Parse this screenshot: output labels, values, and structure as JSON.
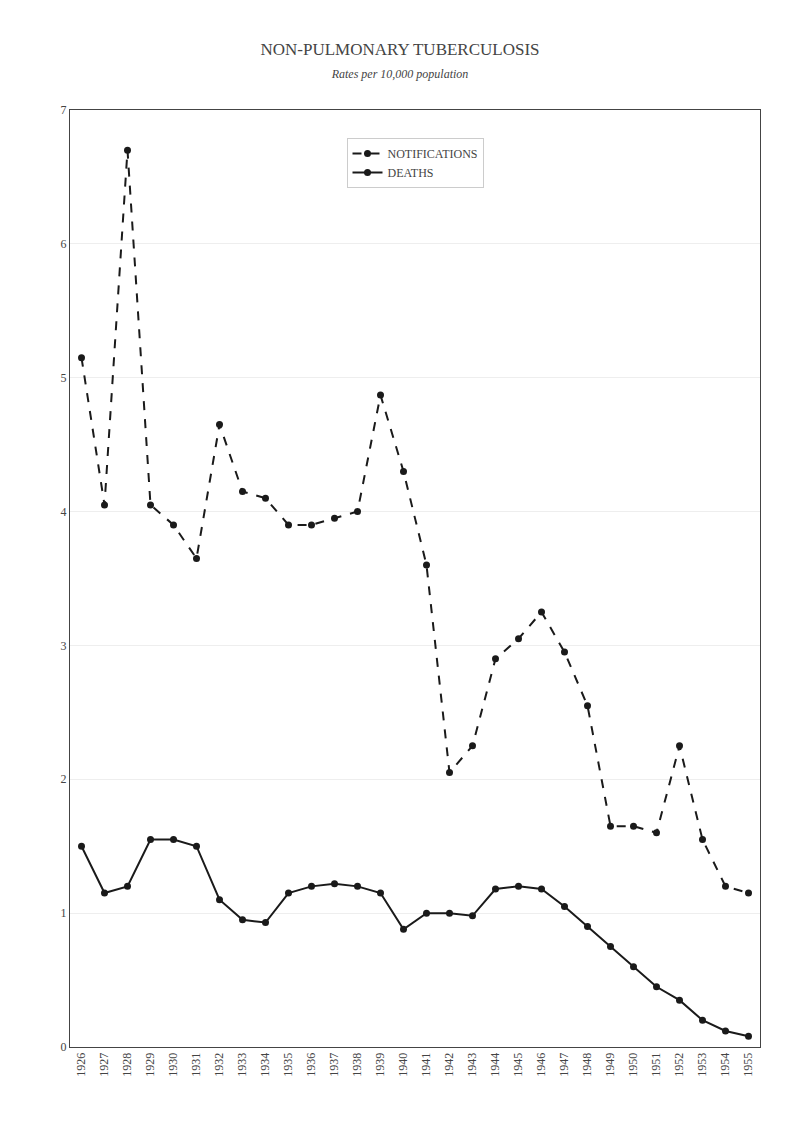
{
  "chart_data": {
    "type": "line",
    "title": "NON-PULMONARY TUBERCULOSIS",
    "subtitle": "Rates per 10,000 population",
    "x": [
      1926,
      1927,
      1928,
      1929,
      1930,
      1931,
      1932,
      1933,
      1934,
      1935,
      1936,
      1937,
      1938,
      1939,
      1940,
      1941,
      1942,
      1943,
      1944,
      1945,
      1946,
      1947,
      1948,
      1949,
      1950,
      1951,
      1952,
      1953,
      1954,
      1955
    ],
    "series": [
      {
        "name": "NOTIFICATIONS",
        "color": "#1a1a1a",
        "line_style": "dashed",
        "marker": "circle",
        "values": [
          5.15,
          4.05,
          6.7,
          4.05,
          3.9,
          3.65,
          4.65,
          4.15,
          4.1,
          3.9,
          3.9,
          3.95,
          4.0,
          4.87,
          4.3,
          3.6,
          2.05,
          2.25,
          2.9,
          3.05,
          3.25,
          2.95,
          2.55,
          1.65,
          1.65,
          1.6,
          2.25,
          1.55,
          1.2,
          1.15
        ]
      },
      {
        "name": "DEATHS",
        "color": "#1a1a1a",
        "line_style": "solid",
        "marker": "circle",
        "values": [
          1.5,
          1.15,
          1.2,
          1.55,
          1.55,
          1.5,
          1.1,
          0.95,
          0.93,
          1.15,
          1.2,
          1.22,
          1.2,
          1.15,
          0.88,
          1.0,
          1.0,
          0.98,
          1.18,
          1.2,
          1.18,
          1.05,
          0.9,
          0.75,
          0.6,
          0.45,
          0.35,
          0.2,
          0.12,
          0.08
        ]
      }
    ],
    "xlim": [
      1925.5,
      1955.5
    ],
    "xticks": [
      1926,
      1927,
      1928,
      1929,
      1930,
      1931,
      1932,
      1933,
      1934,
      1935,
      1936,
      1937,
      1938,
      1939,
      1940,
      1941,
      1942,
      1943,
      1944,
      1945,
      1946,
      1947,
      1948,
      1949,
      1950,
      1951,
      1952,
      1953,
      1954,
      1955
    ],
    "ylim": [
      0,
      7
    ],
    "yticks": [
      0,
      1,
      2,
      3,
      4,
      5,
      6,
      7
    ],
    "grid": "y",
    "legend": "upper center"
  }
}
